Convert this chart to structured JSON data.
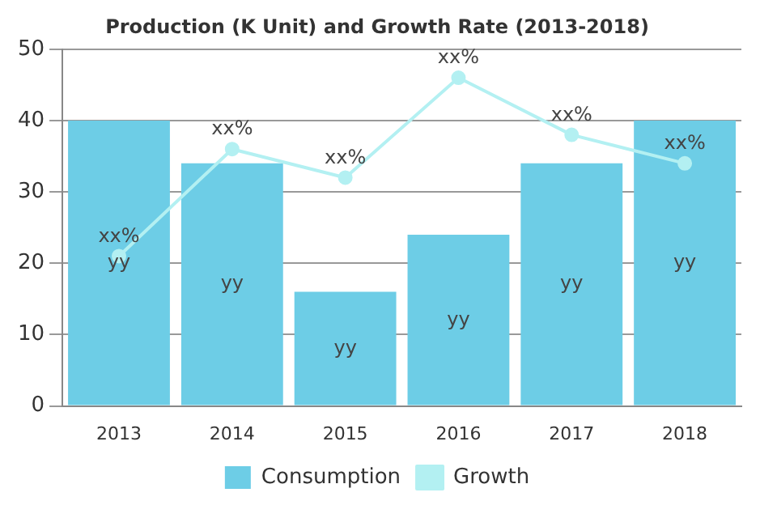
{
  "chart_data": {
    "type": "bar",
    "title": "Production (K Unit) and Growth Rate (2013-2018)",
    "categories": [
      "2013",
      "2014",
      "2015",
      "2016",
      "2017",
      "2018"
    ],
    "series": [
      {
        "name": "Consumption",
        "color": "#6dcde6",
        "values": [
          40,
          34,
          16,
          24,
          34,
          40
        ],
        "value_labels": [
          "yy",
          "yy",
          "yy",
          "yy",
          "yy",
          "yy"
        ]
      },
      {
        "name": "Growth",
        "type": "line",
        "color": "#b3f0f2",
        "marker": "circle",
        "values": [
          21,
          36,
          32,
          46,
          38,
          34
        ],
        "value_labels": [
          "xx%",
          "xx%",
          "xx%",
          "xx%",
          "xx%",
          "xx%"
        ]
      }
    ],
    "ylim": [
      0,
      50
    ],
    "yticks": [
      0,
      10,
      20,
      30,
      40,
      50
    ],
    "grid": "y",
    "legend": "bottom"
  }
}
